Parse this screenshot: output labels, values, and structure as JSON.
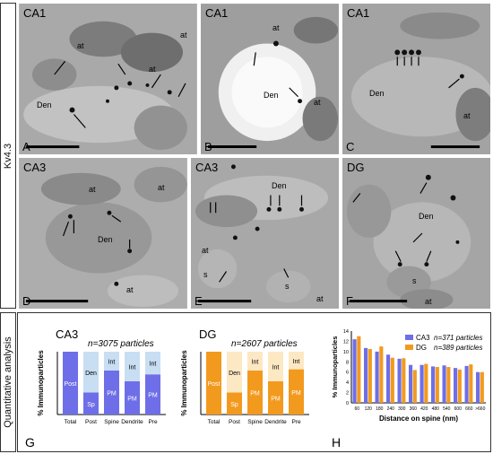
{
  "side_labels": {
    "top": "Kv4.3",
    "bottom": "Quantitative analysis"
  },
  "panels": [
    {
      "letter": "A",
      "title": "CA1",
      "tags": [
        "at",
        "at",
        "Den",
        "at"
      ]
    },
    {
      "letter": "B",
      "title": "CA1",
      "tags": [
        "at",
        "Den",
        "at"
      ]
    },
    {
      "letter": "C",
      "title": "CA1",
      "tags": [
        "Den",
        "at"
      ]
    },
    {
      "letter": "D",
      "title": "CA3",
      "tags": [
        "at",
        "at",
        "Den",
        "at"
      ]
    },
    {
      "letter": "E",
      "title": "CA3",
      "tags": [
        "Den",
        "at",
        "s",
        "s",
        "at"
      ]
    },
    {
      "letter": "F",
      "title": "DG",
      "tags": [
        "Den",
        "s",
        "at"
      ]
    }
  ],
  "charts": {
    "G_letter": "G",
    "H_letter": "H",
    "ca3_title": "CA3",
    "dg_title": "DG",
    "ca3_n": "n=3075 particles",
    "dg_n": "n=2607 particles",
    "ylabel": "% Immunoparticles",
    "h_xlabel": "Distance on spine (nm)"
  },
  "chart_data": [
    {
      "type": "bar",
      "name": "CA3",
      "categories": [
        "Total",
        "Post",
        "Spine",
        "Dendrite",
        "Pre"
      ],
      "series": [
        {
          "name": "Post",
          "values": [
            100,
            0,
            0,
            0,
            0
          ]
        },
        {
          "name": "Sp",
          "values": [
            0,
            35,
            0,
            0,
            0
          ]
        },
        {
          "name": "PM",
          "values": [
            0,
            0,
            70,
            53,
            64
          ]
        },
        {
          "name": "Den",
          "values": [
            0,
            65,
            0,
            0,
            0
          ]
        },
        {
          "name": "Int",
          "values": [
            0,
            0,
            30,
            47,
            36
          ]
        }
      ],
      "colors": {
        "dark": "#6e6ee8",
        "light": "#c8def2"
      }
    },
    {
      "type": "bar",
      "name": "DG",
      "categories": [
        "Total",
        "Post",
        "Spine",
        "Dendrite",
        "Pre"
      ],
      "series": [
        {
          "name": "Post",
          "values": [
            100,
            0,
            0,
            0,
            0
          ]
        },
        {
          "name": "Sp",
          "values": [
            0,
            35,
            0,
            0,
            0
          ]
        },
        {
          "name": "PM",
          "values": [
            0,
            0,
            70,
            53,
            72
          ]
        },
        {
          "name": "Den",
          "values": [
            0,
            65,
            0,
            0,
            0
          ]
        },
        {
          "name": "Int",
          "values": [
            0,
            0,
            30,
            47,
            28
          ]
        }
      ],
      "colors": {
        "dark": "#f29a1e",
        "light": "#fde8c4"
      }
    },
    {
      "type": "bar",
      "categories": [
        "60",
        "120",
        "180",
        "240",
        "300",
        "360",
        "420",
        "480",
        "540",
        "600",
        "660",
        ">660"
      ],
      "ylim": [
        0,
        14
      ],
      "yticks": [
        0,
        2,
        4,
        6,
        8,
        10,
        12,
        14
      ],
      "series": [
        {
          "name": "CA3",
          "label": "n=371 particles",
          "color": "#6e6ee8",
          "values": [
            12.4,
            10.7,
            10.0,
            9.4,
            8.6,
            7.4,
            7.4,
            7.1,
            7.3,
            6.8,
            7.2,
            6.0
          ]
        },
        {
          "name": "DG",
          "label": "n=389 particles",
          "color": "#f29a1e",
          "values": [
            13.0,
            10.5,
            11.0,
            8.8,
            8.7,
            6.4,
            7.6,
            7.0,
            7.0,
            6.5,
            7.5,
            6.0
          ]
        }
      ]
    }
  ]
}
